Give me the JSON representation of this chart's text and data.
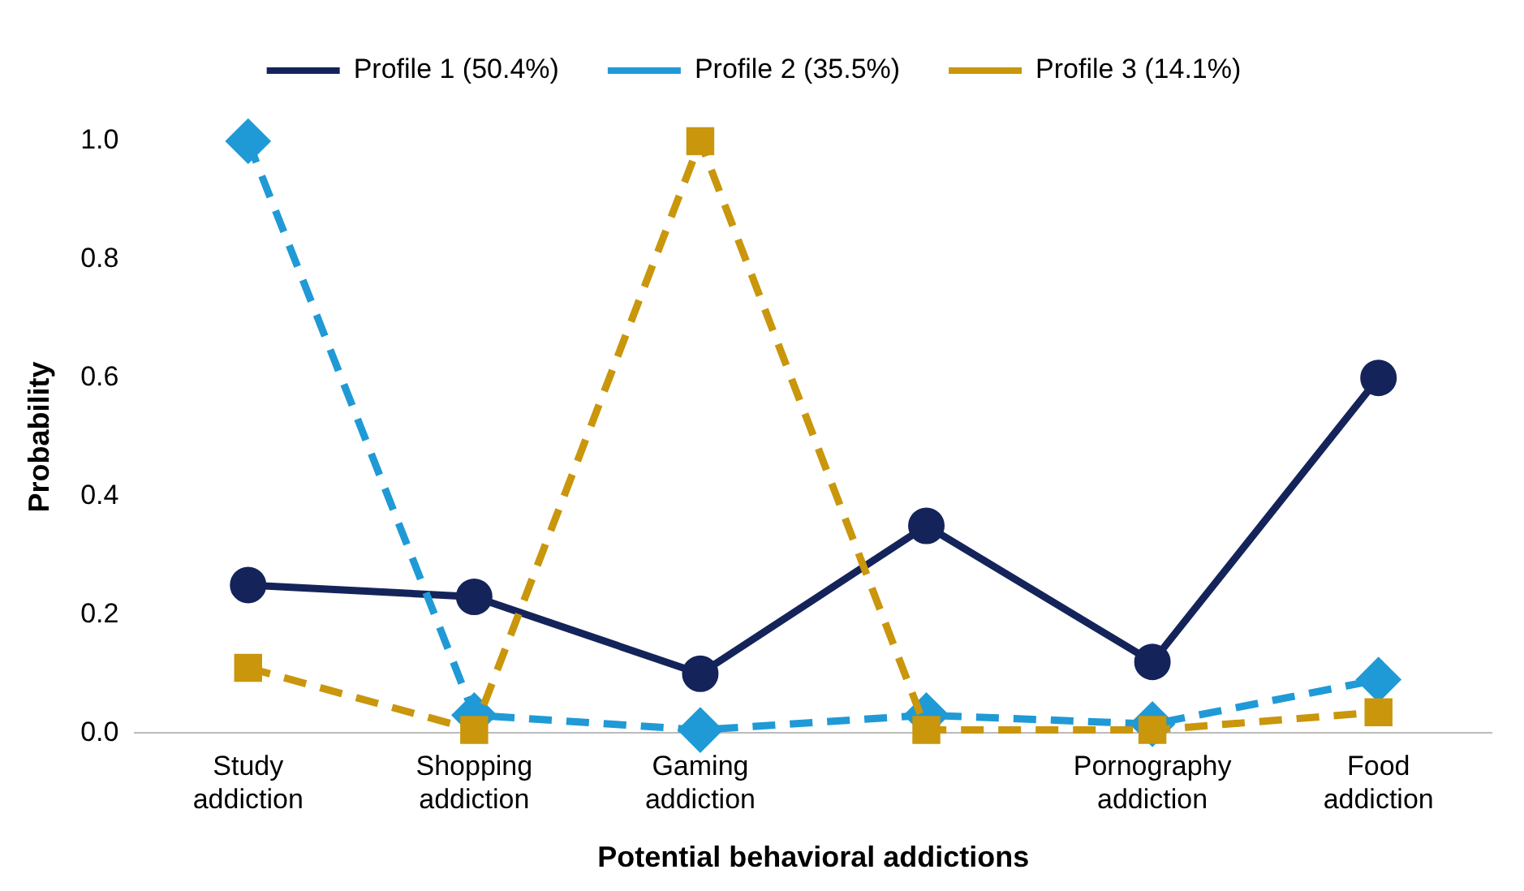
{
  "chart_data": {
    "type": "line",
    "xlabel": "Potential behavioral addictions",
    "ylabel": "Probability",
    "categories": [
      "Study addiction",
      "Shopping addiction",
      "Gaming addiction",
      null,
      "Pornography addiction",
      "Food addiction"
    ],
    "series": [
      {
        "name": "Profile 1 (50.4%)",
        "color": "#14245a",
        "marker": "circle",
        "line_style": "solid",
        "values": [
          0.25,
          0.23,
          0.1,
          0.35,
          0.12,
          0.6
        ]
      },
      {
        "name": "Profile 2 (35.5%)",
        "color": "#1f9ad6",
        "marker": "diamond",
        "line_style": "dashed",
        "values": [
          1.0,
          0.03,
          0.005,
          0.03,
          0.015,
          0.09
        ]
      },
      {
        "name": "Profile 3 (14.1%)",
        "color": "#c9960c",
        "marker": "square",
        "line_style": "dashed",
        "values": [
          0.11,
          0.005,
          1.0,
          0.005,
          0.005,
          0.035
        ]
      }
    ],
    "ylim": [
      0,
      1
    ],
    "yticks": [
      {
        "value": 0,
        "label": "0.0"
      },
      {
        "value": 0.2,
        "label": "0.2"
      },
      {
        "value": 0.4,
        "label": "0.4"
      },
      {
        "value": 0.6,
        "label": "0.6"
      },
      {
        "value": 0.8,
        "label": "0.8"
      },
      {
        "value": 1,
        "label": "1.0"
      }
    ],
    "grid": false,
    "legend": "top"
  }
}
